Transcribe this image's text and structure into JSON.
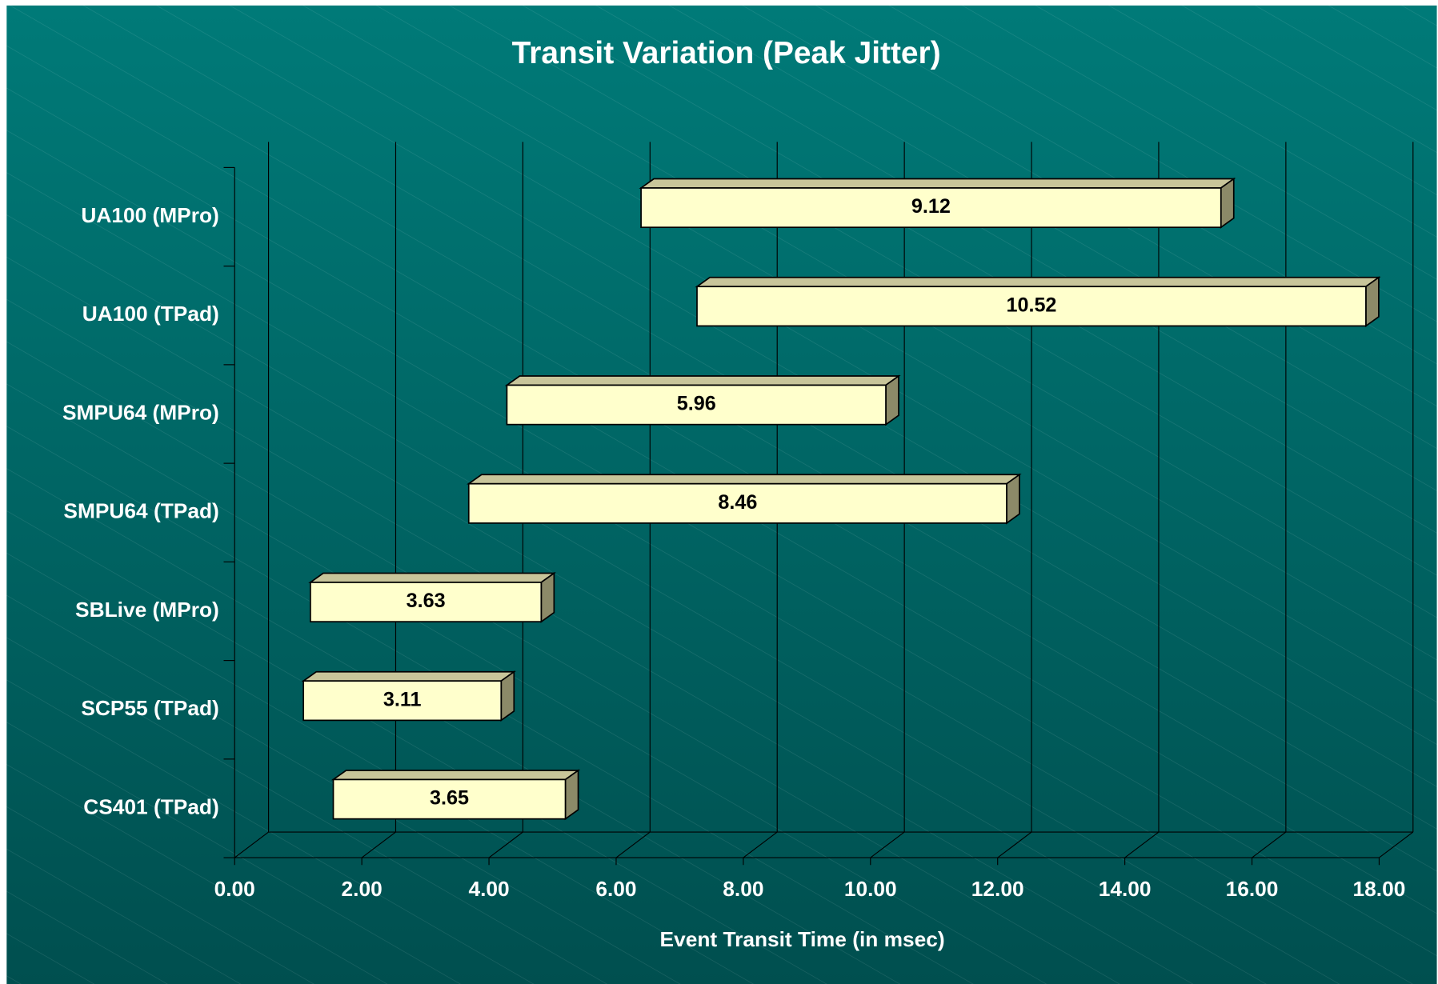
{
  "chart_data": {
    "type": "floating-bar",
    "orientation": "horizontal",
    "title": "Transit Variation (Peak Jitter)",
    "x_label": "Event Transit Time (in msec)",
    "categories": [
      "UA100 (MPro)",
      "UA100 (TPad)",
      "SMPU64 (MPro)",
      "SMPU64 (TPad)",
      "SBLive (MPro)",
      "SCP55 (TPad)",
      "CS401 (TPad)"
    ],
    "series": [
      {
        "values": [
          6.19,
          7.07,
          4.08,
          3.48,
          0.99,
          0.88,
          1.35
        ]
      },
      {
        "color": "#ffffcc",
        "values": [
          9.12,
          10.52,
          5.96,
          8.46,
          3.63,
          3.11,
          3.65
        ]
      }
    ],
    "xlim": [
      0,
      18
    ],
    "xticks": [
      {
        "value": 0,
        "label": "0.00"
      },
      {
        "value": 2,
        "label": "2.00"
      },
      {
        "value": 4,
        "label": "4.00"
      },
      {
        "value": 6,
        "label": "6.00"
      },
      {
        "value": 8,
        "label": "8.00"
      },
      {
        "value": 10,
        "label": "10.00"
      },
      {
        "value": 12,
        "label": "12.00"
      },
      {
        "value": 14,
        "label": "14.00"
      },
      {
        "value": 16,
        "label": "16.00"
      },
      {
        "value": 18,
        "label": "18.00"
      }
    ],
    "grid": true
  }
}
